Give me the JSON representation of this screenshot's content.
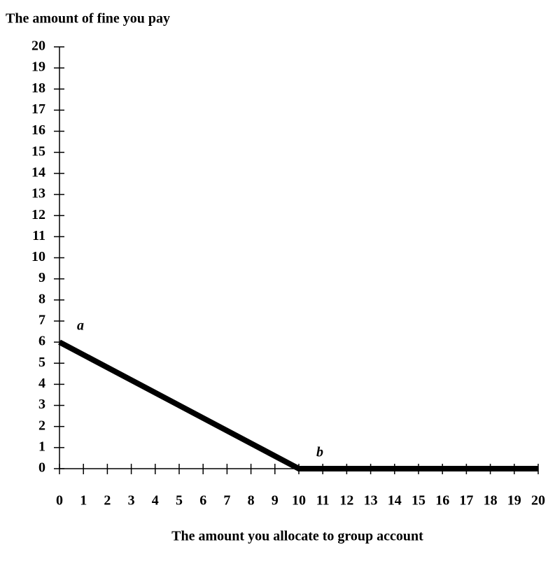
{
  "chart_data": {
    "type": "line",
    "y_axis_title": "The amount of fine you pay",
    "x_axis_title": "The amount you allocate to group account",
    "x": [
      0,
      10,
      20
    ],
    "series": [
      {
        "color": "#000000",
        "values": [
          6,
          0,
          0
        ]
      }
    ],
    "xlim": [
      0,
      20
    ],
    "xticks": [
      0,
      1,
      2,
      3,
      4,
      5,
      6,
      7,
      8,
      9,
      10,
      11,
      12,
      13,
      14,
      15,
      16,
      17,
      18,
      19,
      20
    ],
    "ylim": [
      0,
      20
    ],
    "yticks": [
      0,
      1,
      2,
      3,
      4,
      5,
      6,
      7,
      8,
      9,
      10,
      11,
      12,
      13,
      14,
      15,
      16,
      17,
      18,
      19,
      20
    ],
    "grid": false,
    "annotations": [
      {
        "text": "a",
        "x": 0,
        "y": 6
      },
      {
        "text": "b",
        "x": 10,
        "y": 0
      }
    ]
  }
}
